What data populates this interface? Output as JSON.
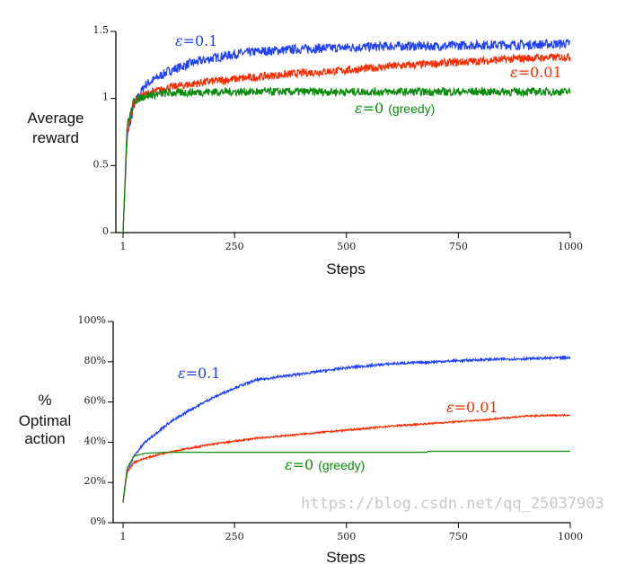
{
  "chart_data": [
    {
      "type": "line",
      "xlabel": "Steps",
      "ylabel": [
        "Average",
        "reward"
      ],
      "xlim": [
        1,
        1000
      ],
      "ylim": [
        0,
        1.5
      ],
      "xticks": [
        "1",
        "250",
        "500",
        "750",
        "1000"
      ],
      "xtick_values": [
        1,
        250,
        500,
        750,
        1000
      ],
      "yticks": [
        "0",
        "0.5",
        "1",
        "1.5"
      ],
      "ytick_values": [
        0,
        0.5,
        1,
        1.5
      ],
      "series": [
        {
          "name": "ε=0.1",
          "color": "#1f3fff",
          "noise": 0.035,
          "x": [
            1,
            10,
            25,
            50,
            100,
            150,
            200,
            250,
            300,
            400,
            500,
            600,
            700,
            800,
            900,
            1000
          ],
          "y": [
            0,
            0.7,
            0.95,
            1.1,
            1.2,
            1.26,
            1.3,
            1.33,
            1.35,
            1.37,
            1.38,
            1.39,
            1.39,
            1.4,
            1.4,
            1.41
          ]
        },
        {
          "name": "ε=0.01",
          "color": "#ff2a00",
          "noise": 0.03,
          "x": [
            1,
            10,
            25,
            50,
            100,
            200,
            300,
            400,
            500,
            600,
            700,
            800,
            900,
            1000
          ],
          "y": [
            0,
            0.75,
            0.98,
            1.03,
            1.08,
            1.13,
            1.16,
            1.19,
            1.21,
            1.24,
            1.26,
            1.28,
            1.3,
            1.31
          ]
        },
        {
          "name": "ε=0 (greedy)",
          "color": "#0a8a0a",
          "noise": 0.03,
          "x": [
            1,
            10,
            25,
            50,
            100,
            200,
            1000
          ],
          "y": [
            0,
            0.8,
            0.98,
            1.02,
            1.04,
            1.05,
            1.05
          ]
        }
      ],
      "labels": [
        {
          "eps": "ε",
          "eq": "=",
          "val": "0.1",
          "extra": "",
          "color": "#1f3fff"
        },
        {
          "eps": "ε",
          "eq": "=",
          "val": "0.01",
          "extra": "",
          "color": "#ff2a00"
        },
        {
          "eps": "ε",
          "eq": "=",
          "val": "0",
          "extra": "(greedy)",
          "color": "#0a8a0a"
        }
      ]
    },
    {
      "type": "line",
      "xlabel": "Steps",
      "ylabel": [
        "%",
        "Optimal",
        "action"
      ],
      "xlim": [
        1,
        1000
      ],
      "ylim": [
        0,
        100
      ],
      "xticks": [
        "1",
        "250",
        "500",
        "750",
        "1000"
      ],
      "xtick_values": [
        1,
        250,
        500,
        750,
        1000
      ],
      "yticks": [
        "0%",
        "20%",
        "40%",
        "60%",
        "80%",
        "100%"
      ],
      "ytick_values": [
        0,
        20,
        40,
        60,
        80,
        100
      ],
      "series": [
        {
          "name": "ε=0.1",
          "color": "#1f3fff",
          "noise": 0.6,
          "x": [
            1,
            5,
            10,
            25,
            50,
            100,
            150,
            200,
            250,
            300,
            400,
            500,
            600,
            700,
            800,
            900,
            1000
          ],
          "y": [
            10,
            18,
            25,
            33,
            40,
            49,
            56,
            62,
            67,
            71,
            74,
            77,
            79,
            80,
            81,
            81.5,
            82
          ]
        },
        {
          "name": "ε=0.01",
          "color": "#ff2a00",
          "noise": 0.4,
          "x": [
            1,
            10,
            25,
            50,
            100,
            200,
            300,
            400,
            500,
            600,
            700,
            800,
            900,
            1000
          ],
          "y": [
            10,
            25,
            30,
            32,
            35,
            39,
            42,
            44,
            46,
            48,
            49.5,
            51,
            53,
            53.5
          ]
        },
        {
          "name": "ε=0 (greedy)",
          "color": "#0a8a0a",
          "noise": 0,
          "x": [
            1,
            10,
            25,
            50,
            100,
            680,
            681,
            1000
          ],
          "y": [
            10,
            27,
            33,
            34.5,
            35,
            35,
            35.5,
            35.5
          ]
        }
      ],
      "labels": [
        {
          "eps": "ε",
          "eq": "=",
          "val": "0.1",
          "extra": "",
          "color": "#1f3fff"
        },
        {
          "eps": "ε",
          "eq": "=",
          "val": "0.01",
          "extra": "",
          "color": "#ff2a00"
        },
        {
          "eps": "ε",
          "eq": "=",
          "val": "0",
          "extra": "(greedy)",
          "color": "#0a8a0a"
        }
      ]
    }
  ],
  "watermark": "https://blog.csdn.net/qq_25037903"
}
